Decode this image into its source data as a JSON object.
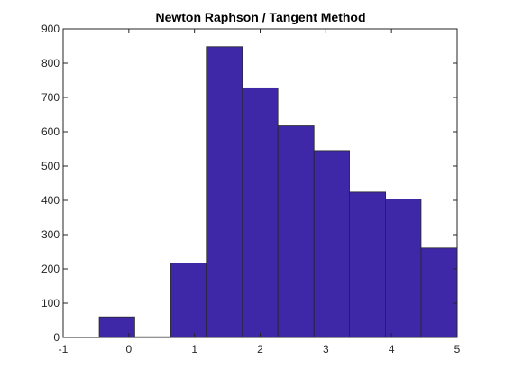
{
  "chart_data": {
    "type": "bar",
    "title": "Newton Raphson / Tangent Method",
    "xlabel": "",
    "ylabel": "",
    "xlim": [
      -1,
      5
    ],
    "ylim": [
      0,
      900
    ],
    "x_ticks": [
      "-1",
      "0",
      "1",
      "2",
      "3",
      "4",
      "5"
    ],
    "y_ticks": [
      "0",
      "100",
      "200",
      "300",
      "400",
      "500",
      "600",
      "700",
      "800",
      "900"
    ],
    "bin_edges": [
      -0.45,
      0.09,
      0.64,
      1.18,
      1.73,
      2.27,
      2.82,
      3.36,
      3.91,
      4.45,
      5.0
    ],
    "values": [
      60,
      2,
      217,
      848,
      728,
      617,
      545,
      424,
      404,
      261
    ],
    "bar_color": "#3f28a8",
    "grid": false,
    "box": true
  }
}
